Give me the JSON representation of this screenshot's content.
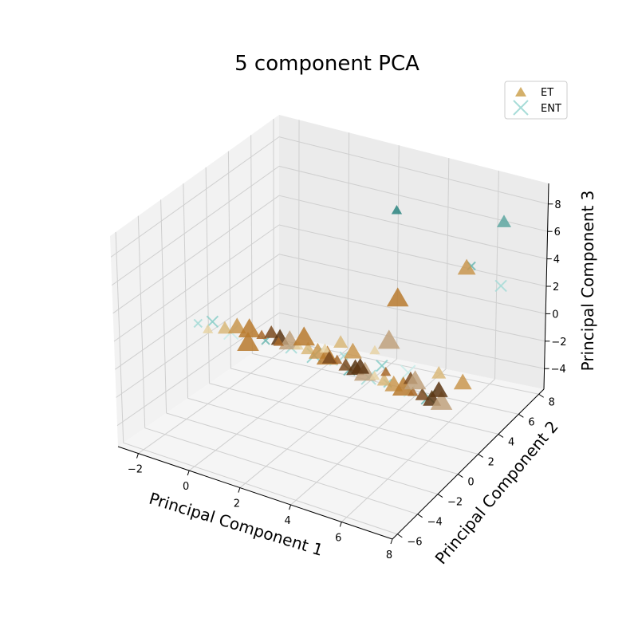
{
  "chart_data": {
    "type": "scatter",
    "title": "5 component PCA",
    "xlabel": "Principal Component 1",
    "ylabel": "Principal Component 2",
    "zlabel": "Principal Component 3",
    "x_ticks": [
      "−2",
      "0",
      "2",
      "4",
      "6",
      "8"
    ],
    "y_ticks": [
      "−6",
      "−4",
      "−2",
      "0",
      "2",
      "4",
      "6",
      "8"
    ],
    "z_ticks": [
      "−4",
      "−2",
      "0",
      "2",
      "4",
      "6",
      "8"
    ],
    "xlim": [
      -2.8,
      8.0
    ],
    "ylim": [
      -6.5,
      8.5
    ],
    "zlim": [
      -5.5,
      9.5
    ],
    "grid": true,
    "legend_position": "top-right",
    "series": [
      {
        "name": "ET",
        "marker": "triangle",
        "color": "#d4b06a",
        "points": [
          [
            -1.5,
            -1.0,
            0.5
          ],
          [
            -1.0,
            -0.6,
            0.6
          ],
          [
            -0.6,
            -0.4,
            0.8
          ],
          [
            -0.2,
            -0.2,
            0.7
          ],
          [
            0.2,
            0.0,
            0.4
          ],
          [
            0.5,
            0.2,
            0.6
          ],
          [
            0.8,
            0.3,
            0.3
          ],
          [
            1.1,
            0.5,
            0.1
          ],
          [
            1.4,
            0.6,
            -0.1
          ],
          [
            1.7,
            0.8,
            -0.3
          ],
          [
            2.0,
            1.0,
            -0.5
          ],
          [
            2.3,
            1.2,
            -0.8
          ],
          [
            2.6,
            1.4,
            -1.0
          ],
          [
            2.9,
            1.5,
            -1.3
          ],
          [
            3.2,
            1.7,
            -1.5
          ],
          [
            3.5,
            1.9,
            -1.8
          ],
          [
            3.8,
            2.1,
            -2.0
          ],
          [
            4.1,
            2.3,
            -2.3
          ],
          [
            4.4,
            2.5,
            -2.6
          ],
          [
            4.7,
            2.7,
            -2.8
          ],
          [
            5.0,
            2.9,
            -3.1
          ],
          [
            5.3,
            3.1,
            -3.3
          ],
          [
            5.6,
            3.3,
            -3.6
          ],
          [
            5.9,
            3.5,
            -3.8
          ],
          [
            2.5,
            0.5,
            0.3
          ],
          [
            3.0,
            0.8,
            0.8
          ],
          [
            3.4,
            1.0,
            0.2
          ],
          [
            1.8,
            0.2,
            0.9
          ],
          [
            4.5,
            1.5,
            -1.0
          ],
          [
            5.2,
            2.2,
            -1.6
          ],
          [
            6.0,
            3.0,
            -2.6
          ],
          [
            4.0,
            3.0,
            0.0
          ],
          [
            3.6,
            2.6,
            -0.6
          ],
          [
            5.5,
            4.2,
            -2.4
          ],
          [
            6.3,
            4.6,
            -3.0
          ],
          [
            0.0,
            -0.8,
            0.2
          ],
          [
            1.0,
            -0.3,
            0.5
          ],
          [
            2.2,
            1.6,
            -1.2
          ],
          [
            3.1,
            2.4,
            -1.9
          ],
          [
            4.8,
            3.6,
            -2.9
          ],
          [
            2.8,
            6.5,
            6.5
          ],
          [
            7.5,
            5.5,
            8.5
          ],
          [
            5.2,
            7.5,
            2.8
          ],
          [
            3.5,
            5.0,
            1.5
          ]
        ]
      },
      {
        "name": "ENT",
        "marker": "x",
        "color": "#a7dcd8",
        "points": [
          [
            -1.8,
            -1.2,
            0.9
          ],
          [
            -1.4,
            -0.8,
            1.0
          ],
          [
            -0.8,
            -0.5,
            0.4
          ],
          [
            0.4,
            -0.1,
            0.2
          ],
          [
            1.2,
            0.4,
            -0.2
          ],
          [
            1.9,
            0.9,
            -0.7
          ],
          [
            2.5,
            1.3,
            -1.1
          ],
          [
            3.0,
            1.6,
            -1.6
          ],
          [
            3.6,
            2.0,
            -2.1
          ],
          [
            4.2,
            2.4,
            -2.5
          ],
          [
            4.9,
            2.8,
            -3.0
          ],
          [
            5.5,
            3.2,
            -3.4
          ],
          [
            2.7,
            1.8,
            -0.9
          ],
          [
            3.8,
            2.8,
            -1.7
          ],
          [
            4.6,
            3.4,
            -2.2
          ],
          [
            6.1,
            5.8,
            4.5
          ],
          [
            7.0,
            6.5,
            3.0
          ]
        ]
      }
    ]
  }
}
